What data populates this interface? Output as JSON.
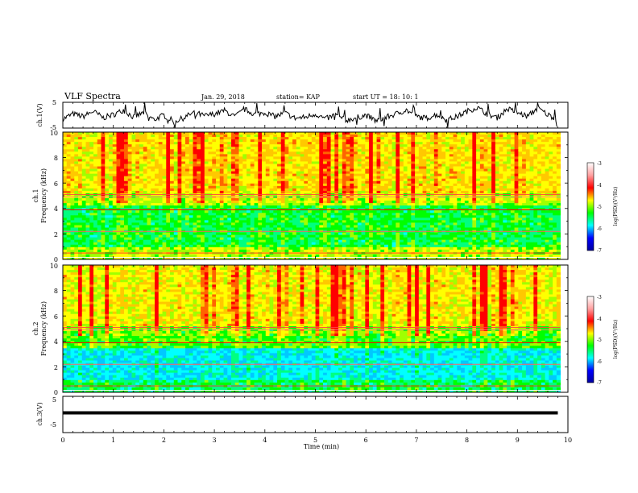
{
  "header": {
    "title": "VLF Spectra",
    "date": "Jan. 29, 2018",
    "station": "station= KAP",
    "start": "start  UT =   18: 10: 1"
  },
  "chart_data": [
    {
      "type": "line",
      "panel": "ch1-waveform",
      "ylabel": "ch.1(V)",
      "ylim": [
        -5,
        5
      ],
      "yticks": [
        "5",
        "-5"
      ],
      "xlim": [
        0,
        10
      ],
      "series": [
        {
          "x": [
            0,
            0.2,
            0.4,
            0.6,
            0.8,
            1.0,
            1.2,
            1.4,
            1.6,
            1.8,
            2.0,
            2.2,
            2.4,
            2.6,
            2.8,
            3.0,
            3.2,
            3.4,
            3.6,
            3.8,
            4.0,
            4.2,
            4.4,
            4.6,
            4.8,
            5.0,
            5.2,
            5.4,
            5.6,
            5.8,
            6.0,
            6.2,
            6.4,
            6.6,
            6.8,
            7.0,
            7.2,
            7.4,
            7.6,
            7.8,
            8.0,
            8.2,
            8.4,
            8.6,
            8.8,
            9.0,
            9.2,
            9.4,
            9.6,
            9.8
          ],
          "y": [
            -1.5,
            0.5,
            -0.5,
            1.5,
            -1.0,
            0.2,
            2.0,
            -0.8,
            1.0,
            -1.8,
            0.0,
            -2.5,
            -1.0,
            1.2,
            -0.3,
            0.5,
            1.8,
            -0.6,
            2.2,
            0.4,
            1.0,
            -0.5,
            0.8,
            -1.2,
            -0.8,
            0.5,
            -1.5,
            0.2,
            -2.0,
            -1.0,
            0.0,
            -2.2,
            -0.8,
            0.5,
            2.0,
            -0.5,
            -1.2,
            0.3,
            -1.8,
            -0.6,
            1.5,
            3.0,
            0.5,
            -1.0,
            2.5,
            1.0,
            -0.5,
            2.8,
            0.2,
            -1.5
          ]
        }
      ]
    },
    {
      "type": "heatmap",
      "panel": "ch1-spectrogram",
      "title": "ch.1",
      "ylabel": "Frequency (kHz)",
      "xlim": [
        0,
        10
      ],
      "ylim": [
        0,
        10
      ],
      "yticks": [
        "0",
        "2",
        "4",
        "6",
        "8",
        "10"
      ],
      "colorbar": {
        "label": "log(PSD)(V²/Hz)",
        "range": [
          -7,
          -3
        ],
        "ticks": [
          "-3",
          "-4",
          "-5",
          "-6",
          "-7"
        ]
      }
    },
    {
      "type": "heatmap",
      "panel": "ch2-spectrogram",
      "title": "ch.2",
      "ylabel": "Frequency (kHz)",
      "xlim": [
        0,
        10
      ],
      "ylim": [
        0,
        10
      ],
      "yticks": [
        "0",
        "2",
        "4",
        "6",
        "8",
        "10"
      ],
      "colorbar": {
        "label": "log(PSD)(V²/Hz)",
        "range": [
          -7,
          -3
        ],
        "ticks": [
          "-3",
          "-4",
          "-5",
          "-6",
          "-7"
        ]
      }
    },
    {
      "type": "line",
      "panel": "ch3-waveform",
      "ylabel": "ch.3(V)",
      "ylim": [
        -5,
        5
      ],
      "yticks": [
        "5",
        "-5"
      ],
      "xlim": [
        0,
        10
      ],
      "series": [
        {
          "x": [
            0,
            9.8
          ],
          "y": [
            0,
            0
          ]
        }
      ]
    }
  ],
  "xaxis": {
    "label": "Time (min)",
    "ticks": [
      "0",
      "1",
      "2",
      "3",
      "4",
      "5",
      "6",
      "7",
      "8",
      "9",
      "10"
    ]
  },
  "colors": {
    "colormap": [
      "#00009f",
      "#0000ff",
      "#00ffff",
      "#00ff00",
      "#ffff00",
      "#ff0000",
      "#ffa0a0",
      "#ffffff"
    ],
    "line": "#000000"
  }
}
